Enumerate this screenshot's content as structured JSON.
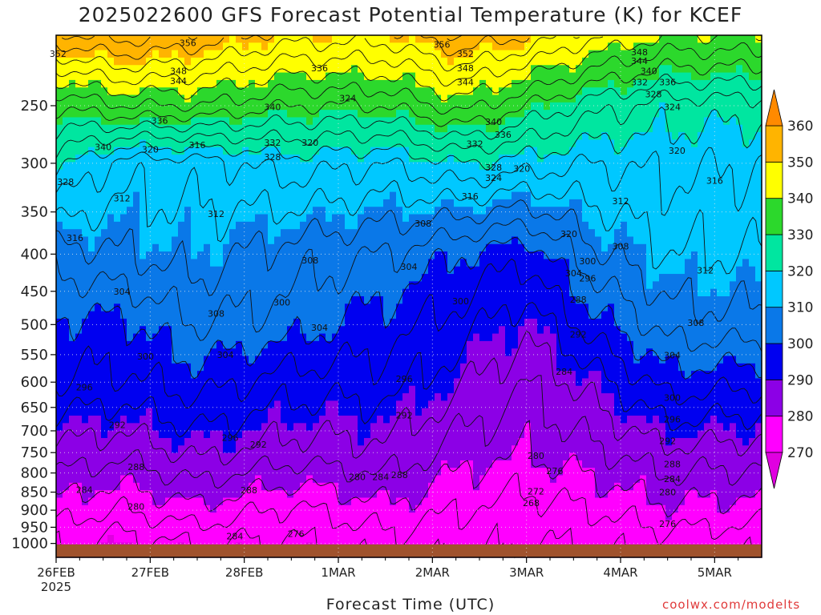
{
  "chart_data": {
    "type": "heatmap",
    "title": "2025022600 GFS Forecast Potential Temperature (K) for KCEF",
    "xlabel": "Forecast Time (UTC)",
    "ylabel": "",
    "credit": "coolwx.com/modelts",
    "x_tick_labels": [
      "26FEB",
      "27FEB",
      "28FEB",
      "1MAR",
      "2MAR",
      "3MAR",
      "4MAR",
      "5MAR"
    ],
    "x_year_label": "2025",
    "y_tick_labels": [
      "250",
      "300",
      "350",
      "400",
      "450",
      "500",
      "550",
      "600",
      "650",
      "700",
      "750",
      "800",
      "850",
      "900",
      "950",
      "1000"
    ],
    "y_axis_scale": "pressure (log-like, decreasing upward)",
    "ylim": [
      1000,
      200
    ],
    "colorbar_ticks": [
      "360",
      "350",
      "340",
      "330",
      "320",
      "310",
      "300",
      "290",
      "280",
      "270"
    ],
    "color_levels": [
      {
        "lo": 260,
        "hi": 270,
        "color": "#e000e0"
      },
      {
        "lo": 270,
        "hi": 280,
        "color": "#ff00ff"
      },
      {
        "lo": 280,
        "hi": 290,
        "color": "#8c00e6"
      },
      {
        "lo": 290,
        "hi": 300,
        "color": "#0000f0"
      },
      {
        "lo": 300,
        "hi": 310,
        "color": "#0a78e8"
      },
      {
        "lo": 310,
        "hi": 320,
        "color": "#00c8ff"
      },
      {
        "lo": 320,
        "hi": 330,
        "color": "#00e6a0"
      },
      {
        "lo": 330,
        "hi": 340,
        "color": "#2cd82c"
      },
      {
        "lo": 340,
        "hi": 350,
        "color": "#ffff00"
      },
      {
        "lo": 350,
        "hi": 360,
        "color": "#ffb400"
      },
      {
        "lo": 360,
        "hi": 370,
        "color": "#ff8a00"
      }
    ],
    "ground_color": "#a0522d",
    "contour_labels": [
      {
        "day": 0.02,
        "p": 212,
        "v": "352"
      },
      {
        "day": 1.4,
        "p": 205,
        "v": "356"
      },
      {
        "day": 1.3,
        "p": 224,
        "v": "348"
      },
      {
        "day": 1.3,
        "p": 231,
        "v": "344"
      },
      {
        "day": 1.1,
        "p": 262,
        "v": "336"
      },
      {
        "day": 0.5,
        "p": 285,
        "v": "340"
      },
      {
        "day": 1.0,
        "p": 287,
        "v": "320"
      },
      {
        "day": 1.5,
        "p": 283,
        "v": "316"
      },
      {
        "day": 2.3,
        "p": 251,
        "v": "340"
      },
      {
        "day": 2.3,
        "p": 281,
        "v": "332"
      },
      {
        "day": 2.3,
        "p": 294,
        "v": "328"
      },
      {
        "day": 2.7,
        "p": 281,
        "v": "320"
      },
      {
        "day": 2.8,
        "p": 222,
        "v": "336"
      },
      {
        "day": 3.1,
        "p": 244,
        "v": "324"
      },
      {
        "day": 4.1,
        "p": 206,
        "v": "356"
      },
      {
        "day": 4.35,
        "p": 212,
        "v": "352"
      },
      {
        "day": 4.35,
        "p": 222,
        "v": "348"
      },
      {
        "day": 4.35,
        "p": 232,
        "v": "344"
      },
      {
        "day": 4.65,
        "p": 263,
        "v": "340"
      },
      {
        "day": 4.45,
        "p": 282,
        "v": "332"
      },
      {
        "day": 4.75,
        "p": 274,
        "v": "336"
      },
      {
        "day": 4.65,
        "p": 304,
        "v": "328"
      },
      {
        "day": 4.65,
        "p": 314,
        "v": "324"
      },
      {
        "day": 4.95,
        "p": 305,
        "v": "320"
      },
      {
        "day": 4.4,
        "p": 333,
        "v": "316"
      },
      {
        "day": 0.1,
        "p": 318,
        "v": "328"
      },
      {
        "day": 0.7,
        "p": 335,
        "v": "312"
      },
      {
        "day": 1.7,
        "p": 352,
        "v": "312"
      },
      {
        "day": 0.2,
        "p": 380,
        "v": "316"
      },
      {
        "day": 3.9,
        "p": 363,
        "v": "308"
      },
      {
        "day": 2.7,
        "p": 408,
        "v": "308"
      },
      {
        "day": 3.75,
        "p": 416,
        "v": "304"
      },
      {
        "day": 0.7,
        "p": 450,
        "v": "304"
      },
      {
        "day": 1.7,
        "p": 483,
        "v": "308"
      },
      {
        "day": 2.4,
        "p": 466,
        "v": "300"
      },
      {
        "day": 2.8,
        "p": 505,
        "v": "304"
      },
      {
        "day": 4.3,
        "p": 464,
        "v": "300"
      },
      {
        "day": 1.8,
        "p": 550,
        "v": "304"
      },
      {
        "day": 0.95,
        "p": 553,
        "v": "300"
      },
      {
        "day": 0.3,
        "p": 610,
        "v": "296"
      },
      {
        "day": 3.7,
        "p": 594,
        "v": "296"
      },
      {
        "day": 0.65,
        "p": 687,
        "v": "292"
      },
      {
        "day": 1.85,
        "p": 715,
        "v": "296"
      },
      {
        "day": 2.15,
        "p": 731,
        "v": "292"
      },
      {
        "day": 3.7,
        "p": 666,
        "v": "292"
      },
      {
        "day": 0.85,
        "p": 785,
        "v": "288"
      },
      {
        "day": 2.05,
        "p": 845,
        "v": "288"
      },
      {
        "day": 3.65,
        "p": 805,
        "v": "288"
      },
      {
        "day": 0.3,
        "p": 843,
        "v": "284"
      },
      {
        "day": 0.85,
        "p": 890,
        "v": "280"
      },
      {
        "day": 1.9,
        "p": 977,
        "v": "284"
      },
      {
        "day": 2.55,
        "p": 970,
        "v": "276"
      },
      {
        "day": 3.2,
        "p": 810,
        "v": "280"
      },
      {
        "day": 3.45,
        "p": 810,
        "v": "284"
      },
      {
        "day": 5.1,
        "p": 757,
        "v": "280"
      },
      {
        "day": 5.3,
        "p": 795,
        "v": "276"
      },
      {
        "day": 5.1,
        "p": 848,
        "v": "272"
      },
      {
        "day": 5.05,
        "p": 880,
        "v": "268"
      },
      {
        "day": 5.4,
        "p": 580,
        "v": "284"
      },
      {
        "day": 5.55,
        "p": 462,
        "v": "288"
      },
      {
        "day": 5.45,
        "p": 375,
        "v": "320"
      },
      {
        "day": 5.65,
        "p": 409,
        "v": "300"
      },
      {
        "day": 5.5,
        "p": 425,
        "v": "304"
      },
      {
        "day": 5.65,
        "p": 432,
        "v": "296"
      },
      {
        "day": 5.55,
        "p": 516,
        "v": "292"
      },
      {
        "day": 6.0,
        "p": 338,
        "v": "312"
      },
      {
        "day": 6.0,
        "p": 390,
        "v": "308"
      },
      {
        "day": 6.2,
        "p": 211,
        "v": "348"
      },
      {
        "day": 6.2,
        "p": 217,
        "v": "344"
      },
      {
        "day": 6.3,
        "p": 224,
        "v": "340"
      },
      {
        "day": 6.2,
        "p": 232,
        "v": "332"
      },
      {
        "day": 6.5,
        "p": 232,
        "v": "336"
      },
      {
        "day": 6.35,
        "p": 241,
        "v": "328"
      },
      {
        "day": 6.55,
        "p": 251,
        "v": "324"
      },
      {
        "day": 6.6,
        "p": 288,
        "v": "320"
      },
      {
        "day": 7.0,
        "p": 317,
        "v": "316"
      },
      {
        "day": 6.9,
        "p": 421,
        "v": "312"
      },
      {
        "day": 6.8,
        "p": 497,
        "v": "308"
      },
      {
        "day": 6.55,
        "p": 551,
        "v": "304"
      },
      {
        "day": 6.55,
        "p": 630,
        "v": "300"
      },
      {
        "day": 6.55,
        "p": 675,
        "v": "296"
      },
      {
        "day": 6.5,
        "p": 723,
        "v": "292"
      },
      {
        "day": 6.55,
        "p": 778,
        "v": "288"
      },
      {
        "day": 6.55,
        "p": 815,
        "v": "284"
      },
      {
        "day": 6.5,
        "p": 850,
        "v": "280"
      },
      {
        "day": 6.5,
        "p": 940,
        "v": "276"
      }
    ],
    "theta_profile_by_day": [
      {
        "day": 0.0,
        "levels": [
          {
            "p": 1000,
            "t": 272
          },
          {
            "p": 900,
            "t": 278
          },
          {
            "p": 750,
            "t": 287
          },
          {
            "p": 600,
            "t": 296
          },
          {
            "p": 500,
            "t": 299
          },
          {
            "p": 400,
            "t": 306
          },
          {
            "p": 300,
            "t": 322
          },
          {
            "p": 250,
            "t": 332
          },
          {
            "p": 200,
            "t": 355
          }
        ]
      },
      {
        "day": 0.7,
        "levels": [
          {
            "p": 1000,
            "t": 270
          },
          {
            "p": 900,
            "t": 276
          },
          {
            "p": 750,
            "t": 285
          },
          {
            "p": 600,
            "t": 295
          },
          {
            "p": 500,
            "t": 299
          },
          {
            "p": 400,
            "t": 308
          },
          {
            "p": 300,
            "t": 314
          },
          {
            "p": 250,
            "t": 336
          },
          {
            "p": 200,
            "t": 358
          }
        ]
      },
      {
        "day": 1.5,
        "levels": [
          {
            "p": 1000,
            "t": 272
          },
          {
            "p": 900,
            "t": 279
          },
          {
            "p": 750,
            "t": 289
          },
          {
            "p": 600,
            "t": 298
          },
          {
            "p": 500,
            "t": 304
          },
          {
            "p": 400,
            "t": 310
          },
          {
            "p": 300,
            "t": 314
          },
          {
            "p": 250,
            "t": 336
          },
          {
            "p": 200,
            "t": 355
          }
        ]
      },
      {
        "day": 2.5,
        "levels": [
          {
            "p": 1000,
            "t": 271
          },
          {
            "p": 900,
            "t": 275
          },
          {
            "p": 750,
            "t": 286
          },
          {
            "p": 600,
            "t": 294
          },
          {
            "p": 500,
            "t": 302
          },
          {
            "p": 400,
            "t": 306
          },
          {
            "p": 300,
            "t": 318
          },
          {
            "p": 250,
            "t": 332
          },
          {
            "p": 200,
            "t": 350
          }
        ]
      },
      {
        "day": 3.5,
        "levels": [
          {
            "p": 1000,
            "t": 274
          },
          {
            "p": 900,
            "t": 279
          },
          {
            "p": 750,
            "t": 287
          },
          {
            "p": 600,
            "t": 294
          },
          {
            "p": 500,
            "t": 298
          },
          {
            "p": 400,
            "t": 304
          },
          {
            "p": 300,
            "t": 316
          },
          {
            "p": 250,
            "t": 332
          },
          {
            "p": 200,
            "t": 350
          }
        ]
      },
      {
        "day": 4.3,
        "levels": [
          {
            "p": 1000,
            "t": 273
          },
          {
            "p": 900,
            "t": 276
          },
          {
            "p": 750,
            "t": 282
          },
          {
            "p": 600,
            "t": 289
          },
          {
            "p": 500,
            "t": 294
          },
          {
            "p": 400,
            "t": 300
          },
          {
            "p": 300,
            "t": 320
          },
          {
            "p": 250,
            "t": 338
          },
          {
            "p": 200,
            "t": 356
          }
        ]
      },
      {
        "day": 5.0,
        "levels": [
          {
            "p": 1000,
            "t": 272
          },
          {
            "p": 900,
            "t": 274
          },
          {
            "p": 750,
            "t": 280
          },
          {
            "p": 600,
            "t": 284
          },
          {
            "p": 500,
            "t": 289
          },
          {
            "p": 400,
            "t": 297
          },
          {
            "p": 300,
            "t": 318
          },
          {
            "p": 250,
            "t": 332
          },
          {
            "p": 200,
            "t": 352
          }
        ]
      },
      {
        "day": 5.7,
        "levels": [
          {
            "p": 1000,
            "t": 272
          },
          {
            "p": 900,
            "t": 276
          },
          {
            "p": 750,
            "t": 283
          },
          {
            "p": 600,
            "t": 290
          },
          {
            "p": 500,
            "t": 298
          },
          {
            "p": 400,
            "t": 307
          },
          {
            "p": 300,
            "t": 316
          },
          {
            "p": 250,
            "t": 326
          },
          {
            "p": 200,
            "t": 345
          }
        ]
      },
      {
        "day": 6.5,
        "levels": [
          {
            "p": 1000,
            "t": 274
          },
          {
            "p": 900,
            "t": 279
          },
          {
            "p": 750,
            "t": 287
          },
          {
            "p": 600,
            "t": 298
          },
          {
            "p": 500,
            "t": 306
          },
          {
            "p": 400,
            "t": 312
          },
          {
            "p": 300,
            "t": 317
          },
          {
            "p": 250,
            "t": 322
          },
          {
            "p": 200,
            "t": 340
          }
        ]
      },
      {
        "day": 7.5,
        "levels": [
          {
            "p": 1000,
            "t": 273
          },
          {
            "p": 900,
            "t": 278
          },
          {
            "p": 750,
            "t": 286
          },
          {
            "p": 600,
            "t": 297
          },
          {
            "p": 500,
            "t": 307
          },
          {
            "p": 400,
            "t": 312
          },
          {
            "p": 300,
            "t": 316
          },
          {
            "p": 250,
            "t": 322
          },
          {
            "p": 200,
            "t": 340
          }
        ]
      }
    ],
    "legend_placement": "right (vertical colorbar)"
  }
}
